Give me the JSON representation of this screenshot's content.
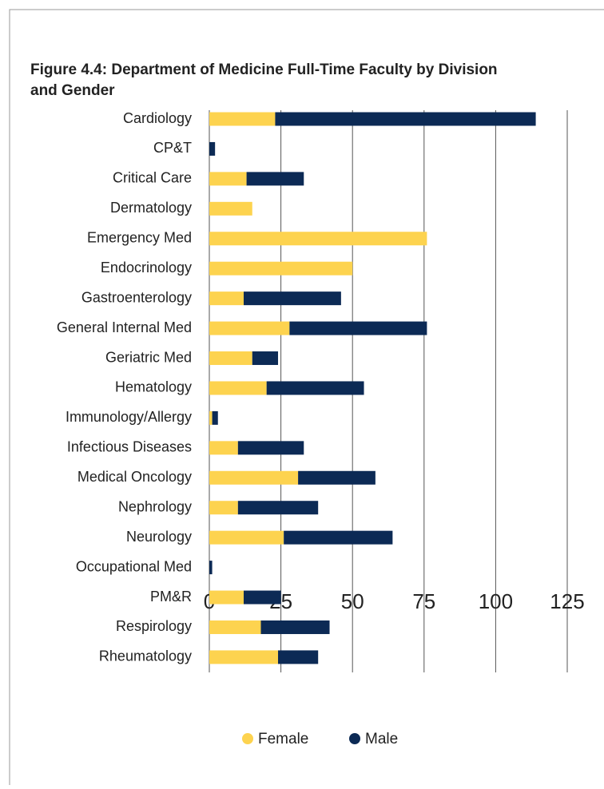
{
  "chart_data": {
    "type": "stacked_barh",
    "title": "Figure 4.4: Department of Medicine Full-Time Faculty by Division and Gender",
    "categories": [
      "Cardiology",
      "CP&T",
      "Critical Care",
      "Dermatology",
      "Emergency Med",
      "Endocrinology",
      "Gastroenterology",
      "General Internal Med",
      "Geriatric Med",
      "Hematology",
      "Immunology/Allergy",
      "Infectious Diseases",
      "Medical Oncology",
      "Nephrology",
      "Neurology",
      "Occupational Med",
      "PM&R",
      "Respirology",
      "Rheumatology"
    ],
    "series": [
      {
        "name": "Female",
        "color": "#fdd34f",
        "values": [
          23,
          0,
          13,
          15,
          76,
          50,
          12,
          28,
          15,
          20,
          1,
          10,
          31,
          10,
          26,
          0,
          12,
          18,
          24
        ]
      },
      {
        "name": "Male",
        "color": "#0c2a55",
        "values": [
          91,
          2,
          20,
          0,
          0,
          0,
          34,
          48,
          9,
          34,
          2,
          23,
          27,
          28,
          38,
          1,
          13,
          24,
          14
        ]
      }
    ],
    "xlim": [
      0,
      125
    ],
    "xticks": [
      0,
      25,
      50,
      75,
      100,
      125
    ],
    "grid": true,
    "legend": "bottom"
  }
}
